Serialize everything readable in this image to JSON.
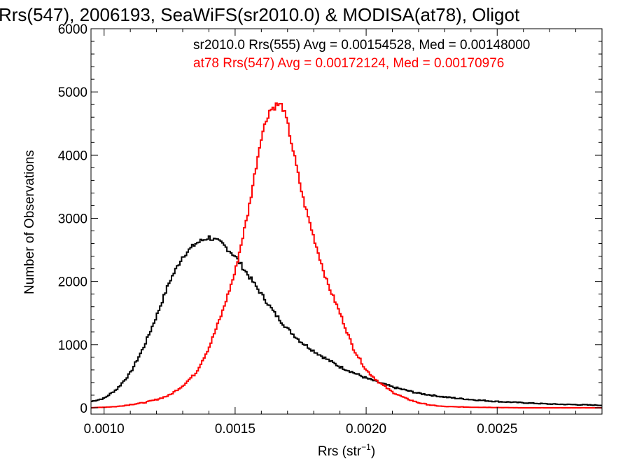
{
  "chart_data": {
    "type": "line",
    "title": "Rrs(547), 2006193, SeaWiFS(sr2010.0) & MODISA(at78), Oligot",
    "xlabel_main": "Rrs (str",
    "xlabel_sup": "−1",
    "xlabel_close": ")",
    "ylabel": "Number of Observations",
    "xlim": [
      0.00095,
      0.0029
    ],
    "ylim": [
      -100,
      6000
    ],
    "xticks": [
      {
        "v": 0.001,
        "label": "0.0010"
      },
      {
        "v": 0.0015,
        "label": "0.0015"
      },
      {
        "v": 0.002,
        "label": "0.0020"
      },
      {
        "v": 0.0025,
        "label": "0.0025"
      }
    ],
    "yticks": [
      {
        "v": 0,
        "label": "0"
      },
      {
        "v": 1000,
        "label": "1000"
      },
      {
        "v": 2000,
        "label": "2000"
      },
      {
        "v": 3000,
        "label": "3000"
      },
      {
        "v": 4000,
        "label": "4000"
      },
      {
        "v": 5000,
        "label": "5000"
      },
      {
        "v": 6000,
        "label": "6000"
      }
    ],
    "grid": false,
    "annotations": [
      {
        "text": "sr2010.0 Rrs(555) Avg = 0.00154528, Med = 0.00148000",
        "color": "#000000"
      },
      {
        "text": "at78 Rrs(547) Avg = 0.00172124, Med = 0.00170976",
        "color": "#ff0000"
      }
    ],
    "series": [
      {
        "color": "#000000",
        "style": "histogram-step",
        "x": [
          0.00095,
          0.001,
          0.00105,
          0.0011,
          0.00115,
          0.0012,
          0.00125,
          0.0013,
          0.00135,
          0.0014,
          0.00145,
          0.0015,
          0.00155,
          0.0016,
          0.00165,
          0.0017,
          0.00175,
          0.0018,
          0.00185,
          0.0019,
          0.00195,
          0.002,
          0.00205,
          0.0021,
          0.00215,
          0.0022,
          0.0023,
          0.0024,
          0.0025,
          0.0026,
          0.0027,
          0.0028,
          0.0029
        ],
        "y": [
          100,
          150,
          300,
          550,
          950,
          1450,
          2000,
          2400,
          2600,
          2700,
          2600,
          2400,
          2100,
          1800,
          1500,
          1250,
          1050,
          900,
          770,
          650,
          560,
          470,
          400,
          330,
          280,
          230,
          170,
          130,
          100,
          80,
          60,
          50,
          40
        ]
      },
      {
        "color": "#ff0000",
        "style": "histogram-step",
        "x": [
          0.00095,
          0.001,
          0.00105,
          0.0011,
          0.00115,
          0.0012,
          0.00125,
          0.0013,
          0.00135,
          0.0014,
          0.00145,
          0.0015,
          0.00155,
          0.0016,
          0.00163,
          0.00166,
          0.00168,
          0.0017,
          0.00173,
          0.00176,
          0.0018,
          0.00185,
          0.0019,
          0.00195,
          0.002,
          0.00205,
          0.0021,
          0.00215,
          0.0022,
          0.00225,
          0.0023,
          0.0024,
          0.0025,
          0.0026,
          0.0027,
          0.0028,
          0.0029
        ],
        "y": [
          0,
          10,
          20,
          50,
          80,
          130,
          200,
          350,
          550,
          950,
          1500,
          2150,
          3100,
          4300,
          4700,
          4800,
          4780,
          4500,
          3900,
          3300,
          2700,
          2000,
          1500,
          950,
          600,
          400,
          250,
          150,
          80,
          40,
          20,
          10,
          5,
          0,
          0,
          0,
          0
        ]
      }
    ]
  }
}
